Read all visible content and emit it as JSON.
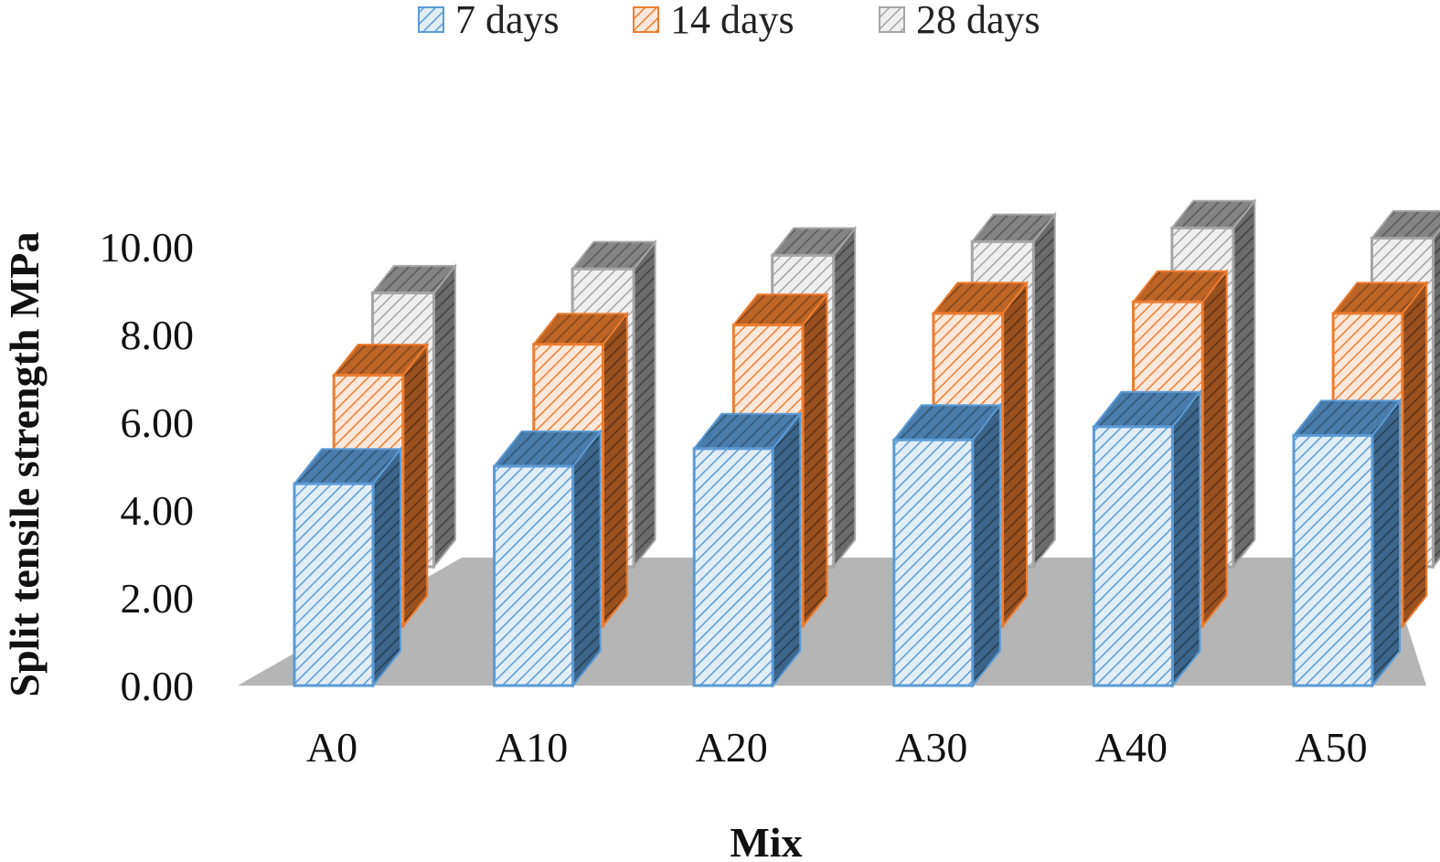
{
  "chart_data": {
    "type": "bar",
    "title": "",
    "xlabel": "Mix",
    "ylabel": "Split tensile strength MPa",
    "categories": [
      "A0",
      "A10",
      "A20",
      "A30",
      "A40",
      "A50"
    ],
    "series": [
      {
        "name": "7 days",
        "color": "#5B9BD5",
        "values": [
          4.6,
          5.0,
          5.4,
          5.6,
          5.9,
          5.7
        ]
      },
      {
        "name": "14 days",
        "color": "#ED7D31",
        "values": [
          6.5,
          7.3,
          7.8,
          8.1,
          8.4,
          8.1
        ]
      },
      {
        "name": "28 days",
        "color": "#A5A5A5",
        "values": [
          8.0,
          8.7,
          9.1,
          9.5,
          9.9,
          9.6
        ]
      }
    ],
    "yticks": [
      "0.00",
      "2.00",
      "4.00",
      "6.00",
      "8.00",
      "10.00"
    ],
    "ylim": [
      0,
      10
    ],
    "grid": false,
    "legend_position": "top",
    "style": "3d-clustered-column-hatched"
  }
}
